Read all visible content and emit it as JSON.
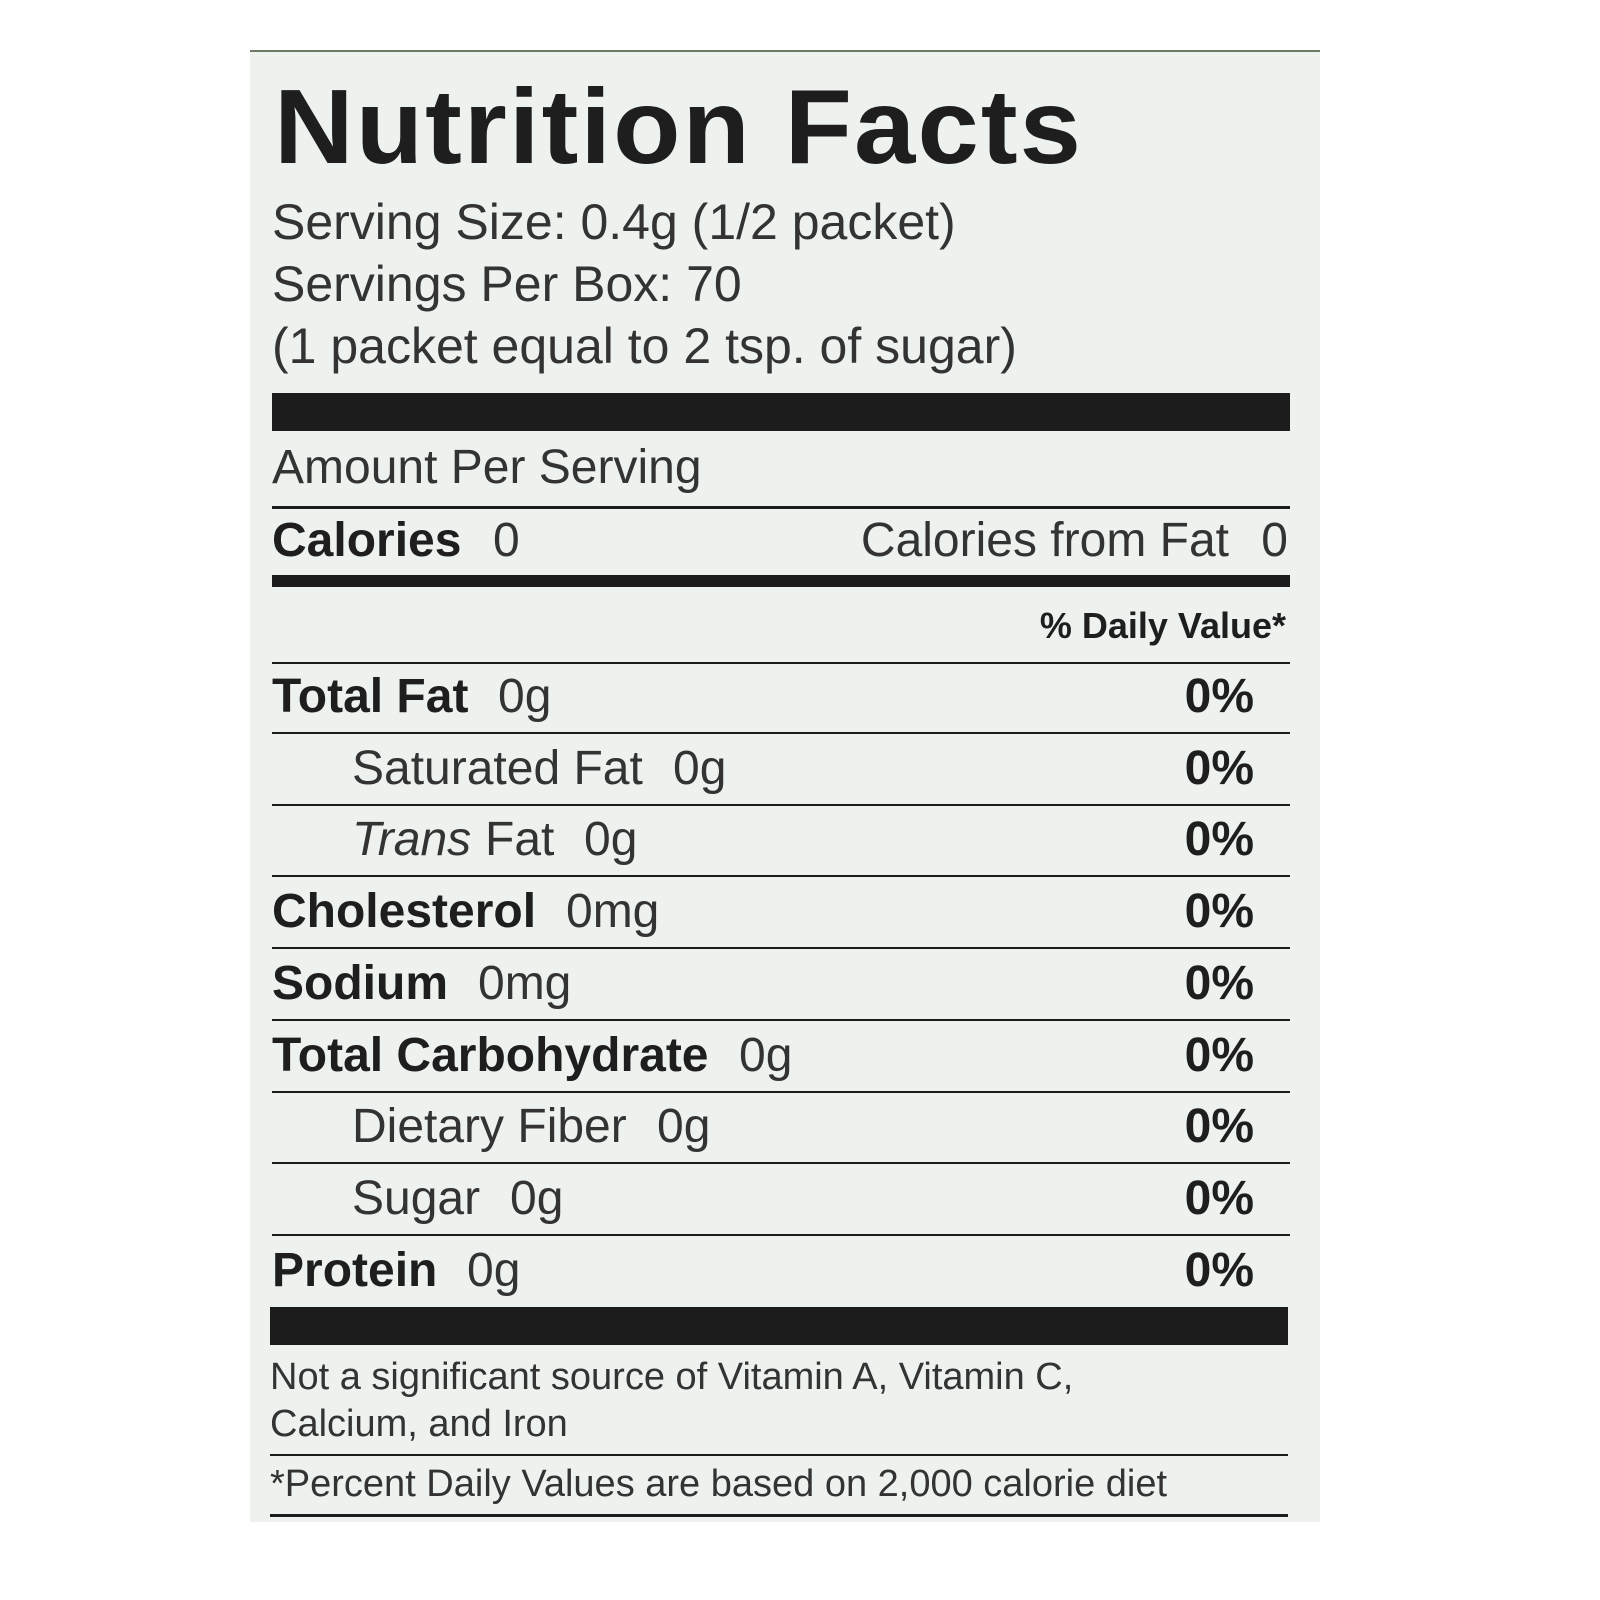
{
  "title": "Nutrition Facts",
  "serving": [
    "Serving Size: 0.4g (1/2 packet)",
    "Servings Per Box: 70",
    "(1 packet equal to 2 tsp. of sugar)"
  ],
  "amount_per_serving": "Amount Per Serving",
  "calories": {
    "label": "Calories",
    "value": "0",
    "from_fat_label": "Calories from Fat",
    "from_fat_value": "0"
  },
  "daily_value_header": "% Daily Value*",
  "rows": [
    {
      "name": "Total Fat",
      "amount": "0g",
      "dv": "0%"
    },
    {
      "name": "Saturated Fat",
      "amount": "0g",
      "dv": "0%"
    },
    {
      "name_italic": "Trans",
      "name": "Fat",
      "amount": "0g",
      "dv": "0%"
    },
    {
      "name": "Cholesterol",
      "amount": "0mg",
      "dv": "0%"
    },
    {
      "name": "Sodium",
      "amount": "0mg",
      "dv": "0%"
    },
    {
      "name": "Total Carbohydrate",
      "amount": "0g",
      "dv": "0%"
    },
    {
      "name": "Dietary Fiber",
      "amount": "0g",
      "dv": "0%"
    },
    {
      "name": "Sugar",
      "amount": "0g",
      "dv": "0%"
    },
    {
      "name": "Protein",
      "amount": "0g",
      "dv": "0%"
    }
  ],
  "footnotes": [
    "Not a significant source of Vitamin A, Vitamin C,",
    "Calcium, and Iron",
    "*Percent Daily Values are based on 2,000 calorie diet"
  ]
}
